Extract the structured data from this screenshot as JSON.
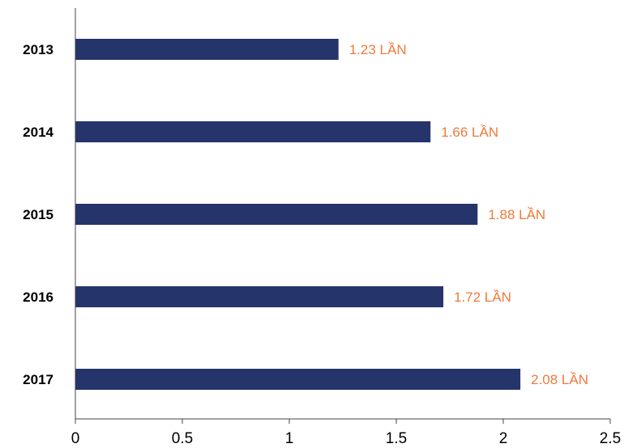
{
  "chart_data": {
    "type": "bar",
    "orientation": "horizontal",
    "categories": [
      "2013",
      "2014",
      "2015",
      "2016",
      "2017"
    ],
    "values": [
      1.23,
      1.66,
      1.88,
      1.72,
      2.08
    ],
    "data_labels": [
      "1.23 LẦN",
      "1.66 LẦN",
      "1.88 LẦN",
      "1.72 LẦN",
      "2.08 LẦN"
    ],
    "xlim": [
      0,
      2.5
    ],
    "x_ticks": [
      0,
      0.5,
      1,
      1.5,
      2,
      2.5
    ],
    "x_tick_labels": [
      "0",
      "0.5",
      "1",
      "1.5",
      "2",
      "2.5"
    ],
    "grid": false,
    "legend": "none",
    "title": "",
    "xlabel": "",
    "ylabel": ""
  },
  "colors": {
    "bar": "#25346b",
    "data_label": "#ee7a3b",
    "axis": "#444444",
    "text": "#000000"
  }
}
